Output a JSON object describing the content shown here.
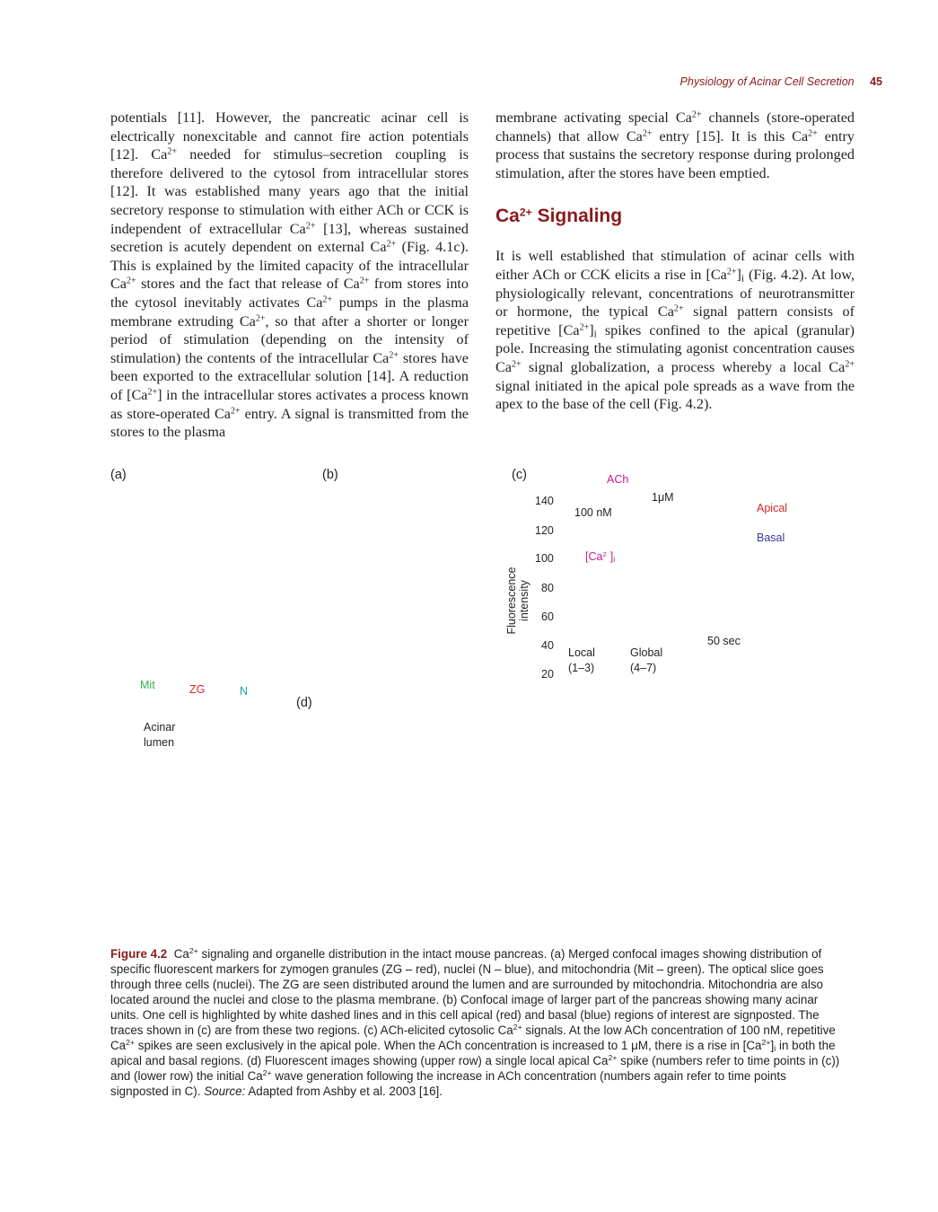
{
  "running_head": {
    "title": "Physiology of Acinar Cell Secretion",
    "page_number": "45"
  },
  "left_column": {
    "p1": [
      "potentials [11]. However, the pancreatic acinar cell is electrically nonexcitable and cannot fire action potentials [12]. Ca",
      "2+",
      " needed for stimulus–secretion coupling is therefore delivered to the cytosol from intracellular stores [12]. It was established many years ago that the initial secretory response to stimulation with either ACh or CCK is independent of extracellular Ca",
      "2+",
      " [13], whereas sustained secretion is acutely dependent on external Ca",
      "2+",
      " (Fig. 4.1c). This is explained by the limited capacity of the intracellular Ca",
      "2+",
      " stores and the fact that release of Ca",
      "2+",
      " from stores into the cytosol inevitably activates Ca",
      "2+",
      " pumps in the plasma membrane extruding Ca",
      "2+",
      ", so that after a shorter or longer period of stimulation (depending on the intensity of stimulation) the contents of the intracellular Ca",
      "2+",
      " stores have been exported to the extracellular solution [14]. A reduction of [Ca",
      "2+",
      "] in the intracellular stores activates a process known as store-operated Ca",
      "2+",
      " entry. A signal is transmitted from the stores to the plasma"
    ]
  },
  "right_column": {
    "p1": [
      "membrane activating special Ca",
      "2+",
      " channels (store-operated channels) that allow Ca",
      "2+",
      " entry [15]. It is this Ca",
      "2+",
      " entry process that sustains the secretory response during prolonged stimulation, after the stores have been emptied."
    ],
    "heading": [
      "Ca",
      "2+",
      " Signaling"
    ],
    "p2": [
      "It is well established that stimulation of acinar cells with either ACh or CCK elicits a rise in [Ca",
      "2+",
      "]",
      "i",
      " (Fig. 4.2). At low, physiologically relevant, concentrations of neurotransmitter or hormone, the typical Ca",
      "2+",
      " signal pattern consists of repetitive [Ca",
      "2+",
      "]",
      "i",
      " spikes confined to the apical (granular) pole. Increasing the stimulating agonist concentration causes Ca",
      "2+",
      " signal globalization, a process whereby a local Ca",
      "2+",
      " signal initiated in the apical pole spreads as a wave from the apex to the base of the cell (Fig. 4.2)."
    ]
  },
  "figure": {
    "panel_a": "(a)",
    "panel_b": "(b)",
    "panel_c": "(c)",
    "panel_d": "(d)",
    "label_mit": "Mit",
    "label_zg": "ZG",
    "label_n": "N",
    "label_acinar": "Acinar",
    "label_lumen": "lumen",
    "label_ach": "ACh",
    "label_1um": "1μM",
    "label_100nm": "100 nM",
    "label_apical": "Apical",
    "label_basal": "Basal",
    "label_ca_a": "[Ca",
    "label_ca_b": "2",
    "label_ca_c": "]",
    "label_ca_d": "i",
    "y_axis_label": "Fluorescence intensity",
    "y_ticks": [
      "140",
      "120",
      "100",
      "80",
      "60",
      "40",
      "20"
    ],
    "label_local": "Local",
    "label_local_range": "(1–3)",
    "label_global": "Global",
    "label_global_range": "(4–7)",
    "label_50sec": "50 sec"
  },
  "caption": {
    "label": "Figure 4.2",
    "parts": [
      "Ca",
      "2+",
      " signaling and organelle distribution in the intact mouse pancreas. (a) Merged confocal images showing distribution of specific fluorescent markers for zymogen granules (ZG – red), nuclei (N – blue), and mitochondria (Mit – green). The optical slice goes through three cells (nuclei). The ZG are seen distributed around the lumen and are surrounded by mitochondria. Mitochondria are also located around the nuclei and close to the plasma membrane. (b) Confocal image of larger part of the pancreas showing many acinar units. One cell is highlighted by white dashed lines and in this cell apical (red) and basal (blue) regions of interest are signposted. The traces shown in (c) are from these two regions. (c) ACh-elicited cytosolic Ca",
      "2+",
      " signals. At the low ACh concentration of 100 nM, repetitive Ca",
      "2+",
      " spikes are seen exclusively in the apical pole. When the ACh concentration is increased to 1 μM, there is a rise in [Ca",
      "2+",
      "]",
      "i",
      " in both the apical and basal regions. (d) Fluorescent images showing (upper row) a single local apical Ca",
      "2+",
      " spike (numbers refer to time points in (c)) and (lower row) the initial Ca",
      "2+",
      " wave generation following the increase in ACh concentration (numbers again refer to time points signposted in C). "
    ],
    "source_label": "Source:",
    "source_text": " Adapted from Ashby et al. 2003 [16]."
  }
}
